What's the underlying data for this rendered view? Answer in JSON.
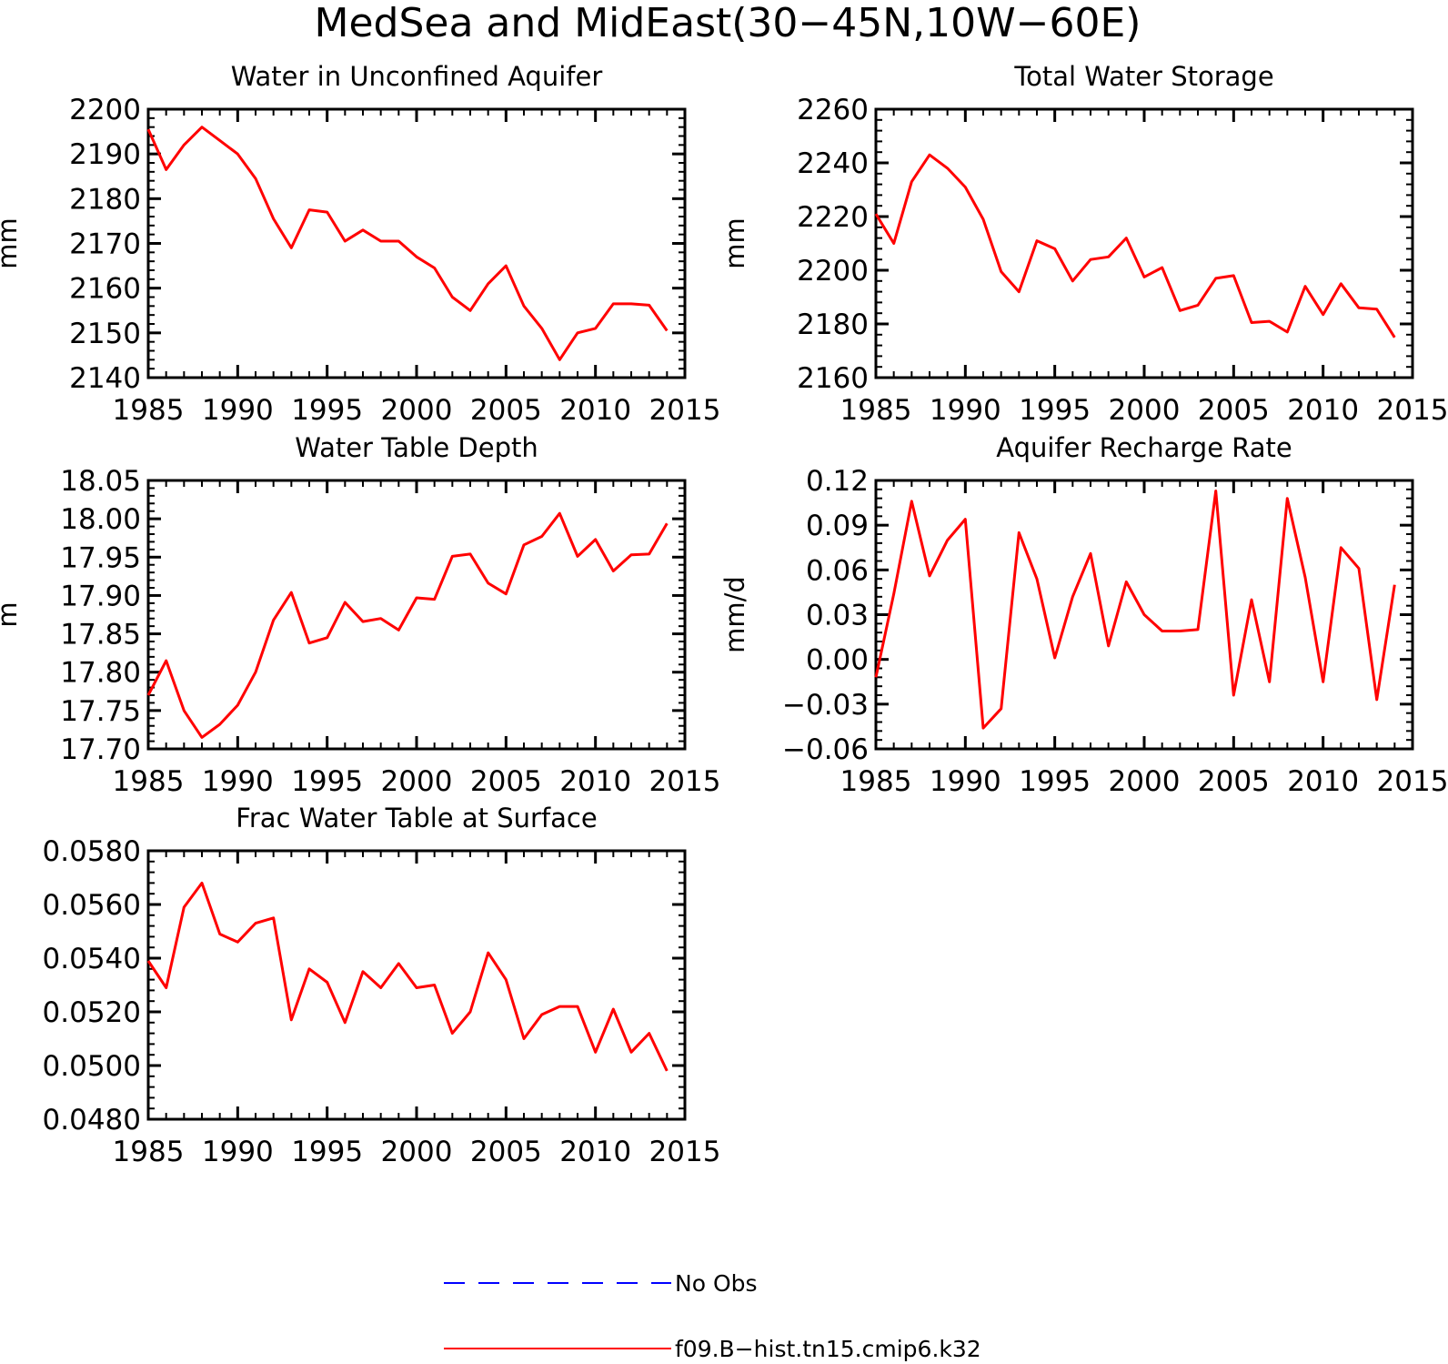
{
  "title": "MedSea and MidEast(30−45N,10W−60E)",
  "colors": {
    "model": "#ff0000",
    "obs": "#0000ff",
    "axis": "#000000"
  },
  "legend": {
    "obs_label": "No Obs",
    "model_label": "f09.B−hist.tn15.cmip6.k32"
  },
  "chart_data": [
    {
      "type": "line",
      "title": "Water in Unconfined Aquifer",
      "ylabel": "mm",
      "xlim": [
        1985,
        2015
      ],
      "ylim": [
        2140,
        2200
      ],
      "xticks": [
        1985,
        1990,
        1995,
        2000,
        2005,
        2010,
        2015
      ],
      "xtick_labels": [
        "1985",
        "1990",
        "1995",
        "2000",
        "2005",
        "2010",
        "2015"
      ],
      "yticks": [
        2140,
        2150,
        2160,
        2170,
        2180,
        2190,
        2200
      ],
      "ytick_labels": [
        "2140",
        "2150",
        "2160",
        "2170",
        "2180",
        "2190",
        "2200"
      ],
      "x": [
        1985,
        1986,
        1987,
        1988,
        1989,
        1990,
        1991,
        1992,
        1993,
        1994,
        1995,
        1996,
        1997,
        1998,
        1999,
        2000,
        2001,
        2002,
        2003,
        2004,
        2005,
        2006,
        2007,
        2008,
        2009,
        2010,
        2011,
        2012,
        2013,
        2014
      ],
      "series": [
        {
          "name": "f09.B−hist.tn15.cmip6.k32",
          "values": [
            2195.5,
            2186.5,
            2192,
            2196,
            2193,
            2190,
            2184.5,
            2175.5,
            2169,
            2177.5,
            2177,
            2170.5,
            2173,
            2170.5,
            2170.5,
            2167,
            2164.5,
            2158,
            2155,
            2161,
            2165,
            2156,
            2151,
            2144,
            2150,
            2151,
            2156.5,
            2156.5,
            2156.2,
            2150.5
          ]
        }
      ]
    },
    {
      "type": "line",
      "title": "Total Water Storage",
      "ylabel": "mm",
      "xlim": [
        1985,
        2015
      ],
      "ylim": [
        2160,
        2260
      ],
      "xticks": [
        1985,
        1990,
        1995,
        2000,
        2005,
        2010,
        2015
      ],
      "xtick_labels": [
        "1985",
        "1990",
        "1995",
        "2000",
        "2005",
        "2010",
        "2015"
      ],
      "yticks": [
        2160,
        2180,
        2200,
        2220,
        2240,
        2260
      ],
      "ytick_labels": [
        "2160",
        "2180",
        "2200",
        "2220",
        "2240",
        "2260"
      ],
      "x": [
        1985,
        1986,
        1987,
        1988,
        1989,
        1990,
        1991,
        1992,
        1993,
        1994,
        1995,
        1996,
        1997,
        1998,
        1999,
        2000,
        2001,
        2002,
        2003,
        2004,
        2005,
        2006,
        2007,
        2008,
        2009,
        2010,
        2011,
        2012,
        2013,
        2014
      ],
      "series": [
        {
          "name": "f09.B−hist.tn15.cmip6.k32",
          "values": [
            2221,
            2210,
            2233,
            2243,
            2238,
            2231,
            2219,
            2199.5,
            2192,
            2211,
            2208,
            2196,
            2204,
            2205,
            2212,
            2197.5,
            2201,
            2185,
            2187,
            2197,
            2198,
            2180.5,
            2181,
            2177,
            2194,
            2183.5,
            2195,
            2186,
            2185.5,
            2175
          ]
        }
      ]
    },
    {
      "type": "line",
      "title": "Water Table Depth",
      "ylabel": "m",
      "xlim": [
        1985,
        2015
      ],
      "ylim": [
        17.7,
        18.05
      ],
      "xticks": [
        1985,
        1990,
        1995,
        2000,
        2005,
        2010,
        2015
      ],
      "xtick_labels": [
        "1985",
        "1990",
        "1995",
        "2000",
        "2005",
        "2010",
        "2015"
      ],
      "yticks": [
        17.7,
        17.75,
        17.8,
        17.85,
        17.9,
        17.95,
        18.0,
        18.05
      ],
      "ytick_labels": [
        "17.70",
        "17.75",
        "17.80",
        "17.85",
        "17.90",
        "17.95",
        "18.00",
        "18.05"
      ],
      "x": [
        1985,
        1986,
        1987,
        1988,
        1989,
        1990,
        1991,
        1992,
        1993,
        1994,
        1995,
        1996,
        1997,
        1998,
        1999,
        2000,
        2001,
        2002,
        2003,
        2004,
        2005,
        2006,
        2007,
        2008,
        2009,
        2010,
        2011,
        2012,
        2013,
        2014
      ],
      "series": [
        {
          "name": "f09.B−hist.tn15.cmip6.k32",
          "values": [
            17.77,
            17.815,
            17.75,
            17.715,
            17.732,
            17.757,
            17.8,
            17.868,
            17.904,
            17.838,
            17.845,
            17.891,
            17.866,
            17.87,
            17.855,
            17.897,
            17.895,
            17.951,
            17.954,
            17.916,
            17.902,
            17.966,
            17.977,
            18.007,
            17.951,
            17.973,
            17.932,
            17.953,
            17.954,
            17.994
          ]
        }
      ]
    },
    {
      "type": "line",
      "title": "Aquifer Recharge Rate",
      "ylabel": "mm/d",
      "xlim": [
        1985,
        2015
      ],
      "ylim": [
        -0.06,
        0.12
      ],
      "xticks": [
        1985,
        1990,
        1995,
        2000,
        2005,
        2010,
        2015
      ],
      "xtick_labels": [
        "1985",
        "1990",
        "1995",
        "2000",
        "2005",
        "2010",
        "2015"
      ],
      "yticks": [
        -0.06,
        -0.03,
        0.0,
        0.03,
        0.06,
        0.09,
        0.12
      ],
      "ytick_labels": [
        "−0.06",
        "−0.03",
        "0.00",
        "0.03",
        "0.06",
        "0.09",
        "0.12"
      ],
      "x": [
        1985,
        1986,
        1987,
        1988,
        1989,
        1990,
        1991,
        1992,
        1993,
        1994,
        1995,
        1996,
        1997,
        1998,
        1999,
        2000,
        2001,
        2002,
        2003,
        2004,
        2005,
        2006,
        2007,
        2008,
        2009,
        2010,
        2011,
        2012,
        2013,
        2014
      ],
      "series": [
        {
          "name": "f09.B−hist.tn15.cmip6.k32",
          "values": [
            -0.012,
            0.044,
            0.106,
            0.056,
            0.08,
            0.094,
            -0.046,
            -0.033,
            0.085,
            0.054,
            0.001,
            0.042,
            0.071,
            0.009,
            0.052,
            0.03,
            0.019,
            0.019,
            0.02,
            0.113,
            -0.024,
            0.04,
            -0.015,
            0.108,
            0.055,
            -0.015,
            0.075,
            0.061,
            -0.027,
            0.05
          ]
        }
      ]
    },
    {
      "type": "line",
      "title": "Frac Water Table at Surface",
      "ylabel": "",
      "xlim": [
        1985,
        2015
      ],
      "ylim": [
        0.048,
        0.058
      ],
      "xticks": [
        1985,
        1990,
        1995,
        2000,
        2005,
        2010,
        2015
      ],
      "xtick_labels": [
        "1985",
        "1990",
        "1995",
        "2000",
        "2005",
        "2010",
        "2015"
      ],
      "yticks": [
        0.048,
        0.05,
        0.052,
        0.054,
        0.056,
        0.058
      ],
      "ytick_labels": [
        "0.0480",
        "0.0500",
        "0.0520",
        "0.0540",
        "0.0560",
        "0.0580"
      ],
      "x": [
        1985,
        1986,
        1987,
        1988,
        1989,
        1990,
        1991,
        1992,
        1993,
        1994,
        1995,
        1996,
        1997,
        1998,
        1999,
        2000,
        2001,
        2002,
        2003,
        2004,
        2005,
        2006,
        2007,
        2008,
        2009,
        2010,
        2011,
        2012,
        2013,
        2014
      ],
      "series": [
        {
          "name": "f09.B−hist.tn15.cmip6.k32",
          "values": [
            0.0539,
            0.0529,
            0.0559,
            0.0568,
            0.0549,
            0.0546,
            0.0553,
            0.0555,
            0.0517,
            0.0536,
            0.0531,
            0.0516,
            0.0535,
            0.0529,
            0.0538,
            0.0529,
            0.053,
            0.0512,
            0.052,
            0.0542,
            0.0532,
            0.051,
            0.0519,
            0.0522,
            0.0522,
            0.0505,
            0.0521,
            0.0505,
            0.0512,
            0.0498
          ]
        }
      ]
    }
  ]
}
